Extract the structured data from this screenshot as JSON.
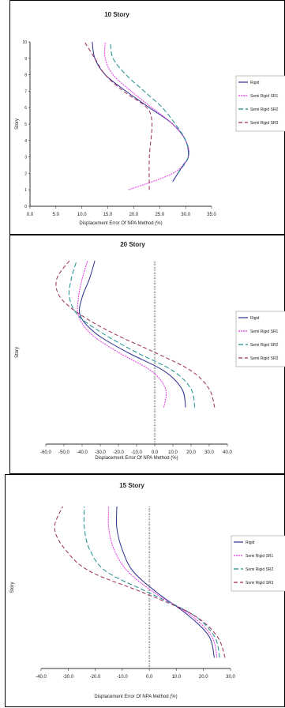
{
  "colors": {
    "Rigid": "#2b2f8f",
    "SR1": "#e838e8",
    "SR2": "#1a8e8e",
    "SR3": "#9a2b5a",
    "center_line": "#666666"
  },
  "chart_data": [
    {
      "type": "line",
      "title": "10 Story",
      "xlabel": "Displacement Error Of NPA Method (%)",
      "ylabel": "Story",
      "xlim": [
        0,
        35
      ],
      "ylim": [
        0,
        10
      ],
      "x_ticks": [
        "0.0",
        "5.0",
        "10.0",
        "15.0",
        "20.0",
        "25.0",
        "30.0",
        "35.0"
      ],
      "y_ticks": [
        "0",
        "1",
        "2",
        "3",
        "4",
        "5",
        "6",
        "7",
        "8",
        "9",
        "10"
      ],
      "legend_position": "right",
      "legend": [
        "Rigid",
        "Semi Rigid SR1",
        "Semi Rigid SR2",
        "Semi Rigid SR3"
      ],
      "center_line": null,
      "series": [
        {
          "name": "Rigid",
          "dash": "",
          "points": [
            [
              27.5,
              1.5
            ],
            [
              29.5,
              2.5
            ],
            [
              30.5,
              3.0
            ],
            [
              30.0,
              4.0
            ],
            [
              27.5,
              5.0
            ],
            [
              23.0,
              6.0
            ],
            [
              18.5,
              7.0
            ],
            [
              14.5,
              8.0
            ],
            [
              12.5,
              9.0
            ],
            [
              12.0,
              10.0
            ]
          ]
        },
        {
          "name": "Semi Rigid SR1",
          "dash": "2,1",
          "points": [
            [
              19.0,
              1.0
            ],
            [
              27.5,
              2.0
            ],
            [
              30.5,
              3.0
            ],
            [
              30.0,
              4.0
            ],
            [
              27.5,
              5.0
            ],
            [
              23.5,
              6.0
            ],
            [
              19.5,
              7.0
            ],
            [
              16.0,
              8.0
            ],
            [
              14.5,
              9.0
            ],
            [
              14.5,
              10.0
            ]
          ]
        },
        {
          "name": "Semi Rigid SR2",
          "dash": "6,3",
          "points": [
            [
              28.5,
              2.0
            ],
            [
              30.5,
              3.0
            ],
            [
              30.0,
              4.0
            ],
            [
              28.0,
              5.0
            ],
            [
              25.5,
              6.0
            ],
            [
              22.0,
              7.0
            ],
            [
              18.5,
              8.0
            ],
            [
              16.0,
              9.0
            ],
            [
              15.5,
              10.0
            ]
          ]
        },
        {
          "name": "Semi Rigid SR3",
          "dash": "5,3",
          "points": [
            [
              23.0,
              1.0
            ],
            [
              23.0,
              3.0
            ],
            [
              23.5,
              5.0
            ],
            [
              22.5,
              6.0
            ],
            [
              18.0,
              7.0
            ],
            [
              14.5,
              8.0
            ],
            [
              12.5,
              9.0
            ],
            [
              10.5,
              10.0
            ]
          ]
        }
      ]
    },
    {
      "type": "line",
      "title": "20 Story",
      "xlabel": "Displacement Error Of NPA Method (%)",
      "ylabel": "Story",
      "xlim": [
        -60,
        40
      ],
      "ylim": [
        0,
        20
      ],
      "x_ticks": [
        "-60.0",
        "-50.0",
        "-40.0",
        "-30.0",
        "-20.0",
        "-10.0",
        "0.0",
        "10.0",
        "20.0",
        "30.0",
        "40.0"
      ],
      "y_ticks": [],
      "legend_position": "right",
      "legend": [
        "Rigid",
        "Semi Rigid SR1",
        "Semi Rigid SR2",
        "Semi Rigid SR3"
      ],
      "center_line": 0,
      "series": [
        {
          "name": "Rigid",
          "dash": "",
          "points": [
            [
              17.0,
              4.0
            ],
            [
              15.0,
              6.0
            ],
            [
              5.0,
              8.0
            ],
            [
              -15.0,
              10.0
            ],
            [
              -32.0,
              12.0
            ],
            [
              -41.0,
              14.0
            ],
            [
              -40.0,
              16.0
            ],
            [
              -36.0,
              18.0
            ],
            [
              -33.0,
              20.0
            ]
          ]
        },
        {
          "name": "Semi Rigid SR1",
          "dash": "2,1",
          "points": [
            [
              5.0,
              4.0
            ],
            [
              6.0,
              6.0
            ],
            [
              -2.0,
              8.0
            ],
            [
              -20.0,
              10.0
            ],
            [
              -35.0,
              12.0
            ],
            [
              -42.0,
              14.0
            ],
            [
              -42.0,
              16.0
            ],
            [
              -40.0,
              18.0
            ],
            [
              -37.0,
              20.0
            ]
          ]
        },
        {
          "name": "Semi Rigid SR2",
          "dash": "6,3",
          "points": [
            [
              22.0,
              4.0
            ],
            [
              20.0,
              6.0
            ],
            [
              10.0,
              8.0
            ],
            [
              -10.0,
              10.0
            ],
            [
              -28.0,
              12.0
            ],
            [
              -42.0,
              14.0
            ],
            [
              -47.0,
              16.0
            ],
            [
              -46.0,
              18.0
            ],
            [
              -43.0,
              20.0
            ]
          ]
        },
        {
          "name": "Semi Rigid SR3",
          "dash": "5,3",
          "points": [
            [
              33.0,
              4.0
            ],
            [
              30.0,
              6.0
            ],
            [
              20.0,
              8.0
            ],
            [
              0.0,
              10.0
            ],
            [
              -22.0,
              12.0
            ],
            [
              -40.0,
              14.0
            ],
            [
              -52.0,
              16.0
            ],
            [
              -54.0,
              18.0
            ],
            [
              -47.0,
              20.0
            ]
          ]
        }
      ]
    },
    {
      "type": "line",
      "title": "15 Story",
      "xlabel": "Displacement Error Of NPA Method (%)",
      "ylabel": "Story",
      "xlim": [
        -40,
        30
      ],
      "ylim": [
        0,
        15
      ],
      "x_ticks": [
        "-40.0",
        "-30.0",
        "-20.0",
        "-10.0",
        "0.0",
        "10.0",
        "20.0",
        "30.0"
      ],
      "y_ticks": [],
      "legend_position": "right",
      "legend": [
        "Rigid",
        "Semi Rigid SR1",
        "Semi Rigid SR2",
        "Semi Rigid SR3"
      ],
      "center_line": 0,
      "series": [
        {
          "name": "Rigid",
          "dash": "",
          "points": [
            [
              24.0,
              1.0
            ],
            [
              22.0,
              3.0
            ],
            [
              14.0,
              5.0
            ],
            [
              3.0,
              7.0
            ],
            [
              -6.0,
              9.0
            ],
            [
              -10.0,
              11.0
            ],
            [
              -12.0,
              13.0
            ],
            [
              -12.0,
              15.0
            ]
          ]
        },
        {
          "name": "Semi Rigid SR1",
          "dash": "2,1",
          "points": [
            [
              25.0,
              1.0
            ],
            [
              23.0,
              3.0
            ],
            [
              15.0,
              5.0
            ],
            [
              2.0,
              7.0
            ],
            [
              -8.0,
              9.0
            ],
            [
              -13.0,
              11.0
            ],
            [
              -15.0,
              13.0
            ],
            [
              -15.0,
              15.0
            ]
          ]
        },
        {
          "name": "Semi Rigid SR2",
          "dash": "6,3",
          "points": [
            [
              26.0,
              1.0
            ],
            [
              24.0,
              3.0
            ],
            [
              16.0,
              5.0
            ],
            [
              0.0,
              7.0
            ],
            [
              -16.0,
              9.0
            ],
            [
              -22.0,
              11.0
            ],
            [
              -24.0,
              13.0
            ],
            [
              -24.0,
              15.0
            ]
          ]
        },
        {
          "name": "Semi Rigid SR3",
          "dash": "5,3",
          "points": [
            [
              28.0,
              1.0
            ],
            [
              25.0,
              3.0
            ],
            [
              16.0,
              5.0
            ],
            [
              -2.0,
              7.0
            ],
            [
              -22.0,
              9.0
            ],
            [
              -31.0,
              11.0
            ],
            [
              -35.0,
              13.0
            ],
            [
              -32.0,
              15.0
            ]
          ]
        }
      ]
    }
  ]
}
